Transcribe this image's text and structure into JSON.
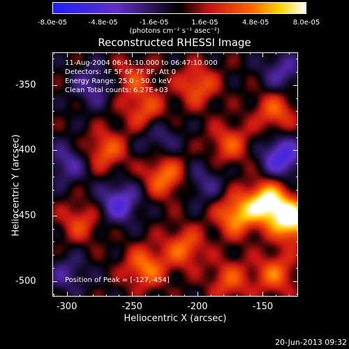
{
  "colorbar": {
    "ticks": [
      "-8.0e-05",
      "-4.8e-05",
      "-1.6e-05",
      "1.6e-05",
      "4.8e-05",
      "8.0e-05"
    ],
    "units": "(photons cm⁻² s⁻¹ asec⁻²)",
    "range": [
      -8e-05,
      8e-05
    ]
  },
  "title": "Reconstructed RHESSI Image",
  "info": {
    "line1": "11-Aug-2004 06:41:10.000 to 06:47:10.000",
    "line2": "Detectors: 4F 5F 6F 7F 8F, Att 0",
    "line3": "Energy Range: 25.0 - 50.0 keV",
    "line4": "Clean    Total counts: 6.27E+03"
  },
  "peak": "Position of Peak = [-127,-454]",
  "axes": {
    "xlabel": "Heliocentric X (arcsec)",
    "ylabel": "Heliocentric Y (arcsec)",
    "xticks": [
      "-300",
      "-250",
      "-200",
      "-150"
    ],
    "yticks": [
      "-350",
      "-400",
      "-450",
      "-500"
    ]
  },
  "timestamp": "20-Jun-2013 09:32",
  "chart_data": {
    "type": "heatmap",
    "title": "Reconstructed RHESSI Image",
    "xlabel": "Heliocentric X (arcsec)",
    "ylabel": "Heliocentric Y (arcsec)",
    "xlim": [
      -311,
      -123
    ],
    "ylim": [
      -512,
      -325
    ],
    "xticks": [
      -300,
      -250,
      -200,
      -150
    ],
    "yticks": [
      -350,
      -400,
      -450,
      -500
    ],
    "colorbar_range": [
      -8e-05,
      8e-05
    ],
    "colorbar_ticks": [
      -8e-05,
      -4.8e-05,
      -1.6e-05,
      1.6e-05,
      4.8e-05,
      8e-05
    ],
    "peak_position": [
      -127,
      -454
    ],
    "color_table": "blue-purple-black-red-orange-yellow-white",
    "sources": [
      {
        "x": -146,
        "y": -440,
        "intensity": 8e-05
      },
      {
        "x": -127,
        "y": -454,
        "intensity": 8e-05
      },
      {
        "x": -170,
        "y": -450,
        "intensity": 5.6e-05
      },
      {
        "x": -240,
        "y": -490,
        "intensity": 4.8e-05
      },
      {
        "x": -210,
        "y": -475,
        "intensity": 4.2e-05
      },
      {
        "x": -225,
        "y": -420,
        "intensity": 4.8e-05
      },
      {
        "x": -140,
        "y": -370,
        "intensity": 4e-05
      },
      {
        "x": -175,
        "y": -395,
        "intensity": 3.6e-05
      },
      {
        "x": -200,
        "y": -350,
        "intensity": 4e-05
      },
      {
        "x": -240,
        "y": -370,
        "intensity": 3.6e-05
      },
      {
        "x": -270,
        "y": -400,
        "intensity": 4e-05
      },
      {
        "x": -290,
        "y": -455,
        "intensity": 3.2e-05
      },
      {
        "x": -250,
        "y": -345,
        "intensity": 3e-05
      },
      {
        "x": -175,
        "y": -500,
        "intensity": 3.6e-05
      },
      {
        "x": -140,
        "y": -495,
        "intensity": 4.2e-05
      },
      {
        "x": -280,
        "y": -350,
        "intensity": -3.2e-05
      },
      {
        "x": -260,
        "y": -440,
        "intensity": -4.8e-05
      },
      {
        "x": -300,
        "y": -410,
        "intensity": -3.2e-05
      },
      {
        "x": -135,
        "y": -405,
        "intensity": -5.6e-05
      },
      {
        "x": -135,
        "y": -340,
        "intensity": -3.2e-05
      },
      {
        "x": -195,
        "y": -425,
        "intensity": -2.6e-05
      },
      {
        "x": -230,
        "y": -390,
        "intensity": -2.6e-05
      },
      {
        "x": -300,
        "y": -495,
        "intensity": -2.6e-05
      }
    ]
  }
}
